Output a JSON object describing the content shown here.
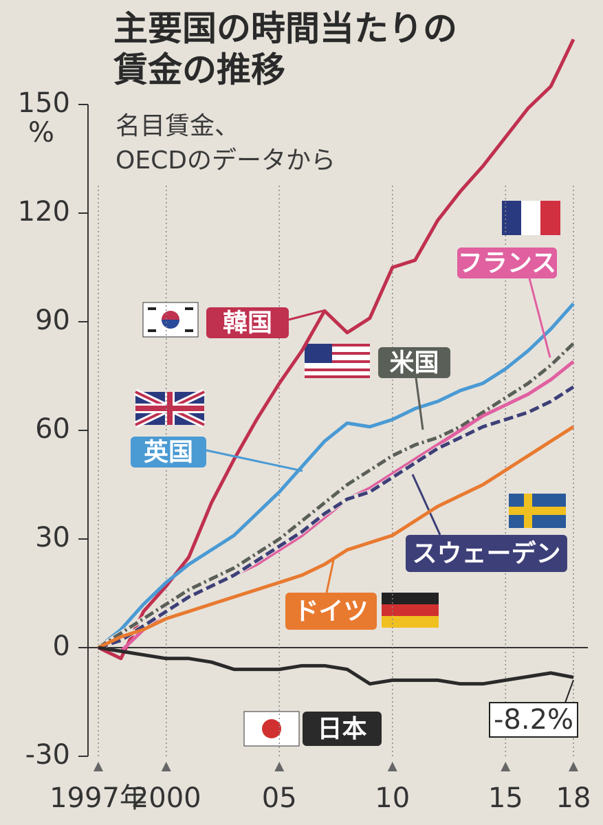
{
  "chart_data": {
    "type": "line",
    "title": [
      "主要国の時間当たりの",
      "賃金の推移"
    ],
    "subtitle": [
      "名目賃金、",
      "OECDのデータから"
    ],
    "y_unit": "%",
    "x": [
      1997,
      1998,
      1999,
      2000,
      2001,
      2002,
      2003,
      2004,
      2005,
      2006,
      2007,
      2008,
      2009,
      2010,
      2011,
      2012,
      2013,
      2014,
      2015,
      2016,
      2017,
      2018
    ],
    "xlim": [
      1997,
      2018
    ],
    "xticks": [
      {
        "value": 1997,
        "label": "1997年"
      },
      2000,
      {
        "value": 2005,
        "label": "05"
      },
      10,
      15,
      18
    ],
    "ylim": [
      -30,
      150
    ],
    "yticks": [
      -30,
      0,
      30,
      60,
      90,
      120,
      150
    ],
    "grid": true,
    "series": [
      {
        "name": "韓国",
        "color": "#c0304f",
        "linestyle": "solid",
        "values": [
          0,
          -3,
          10,
          17,
          25,
          40,
          52,
          63,
          73,
          82,
          93,
          87,
          91,
          105,
          107,
          118,
          126,
          133,
          141,
          149,
          155,
          168
        ]
      },
      {
        "name": "英国",
        "color": "#4a9ad4",
        "linestyle": "solid",
        "values": [
          0,
          5,
          12,
          18,
          23,
          27,
          31,
          37,
          43,
          50,
          57,
          62,
          61,
          63,
          66,
          68,
          71,
          73,
          77,
          82,
          88,
          95
        ]
      },
      {
        "name": "米国",
        "color": "#5a5f58",
        "linestyle": "dashdot",
        "values": [
          0,
          4,
          8,
          12,
          16,
          19,
          22,
          26,
          30,
          35,
          40,
          45,
          49,
          53,
          56,
          58,
          61,
          65,
          69,
          73,
          78,
          84
        ]
      },
      {
        "name": "フランス",
        "color": "#e060a0",
        "linestyle": "solid",
        "values": [
          0,
          -1,
          5,
          10,
          14,
          17,
          20,
          23,
          27,
          31,
          36,
          41,
          44,
          48,
          52,
          56,
          60,
          64,
          67,
          70,
          74,
          79
        ]
      },
      {
        "name": "スウェーデン",
        "color": "#3d3f78",
        "linestyle": "dashed",
        "values": [
          0,
          2,
          6,
          10,
          14,
          17,
          20,
          24,
          28,
          32,
          37,
          41,
          43,
          47,
          51,
          55,
          58,
          61,
          63,
          65,
          68,
          72
        ]
      },
      {
        "name": "ドイツ",
        "color": "#e87a30",
        "linestyle": "solid",
        "values": [
          0,
          3,
          5,
          8,
          10,
          12,
          14,
          16,
          18,
          20,
          23,
          27,
          29,
          31,
          35,
          39,
          42,
          45,
          49,
          53,
          57,
          61
        ]
      },
      {
        "name": "日本",
        "color": "#2a2a2a",
        "linestyle": "solid",
        "values": [
          0,
          -1,
          -2,
          -3,
          -3,
          -4,
          -6,
          -6,
          -6,
          -5,
          -5,
          -6,
          -10,
          -9,
          -9,
          -9,
          -10,
          -10,
          -9,
          -8,
          -7,
          -8.2
        ],
        "value_labels": [
          null,
          null,
          null,
          null,
          null,
          null,
          null,
          null,
          null,
          null,
          null,
          null,
          null,
          null,
          null,
          null,
          null,
          null,
          null,
          null,
          null,
          "-8.2%"
        ]
      }
    ]
  }
}
